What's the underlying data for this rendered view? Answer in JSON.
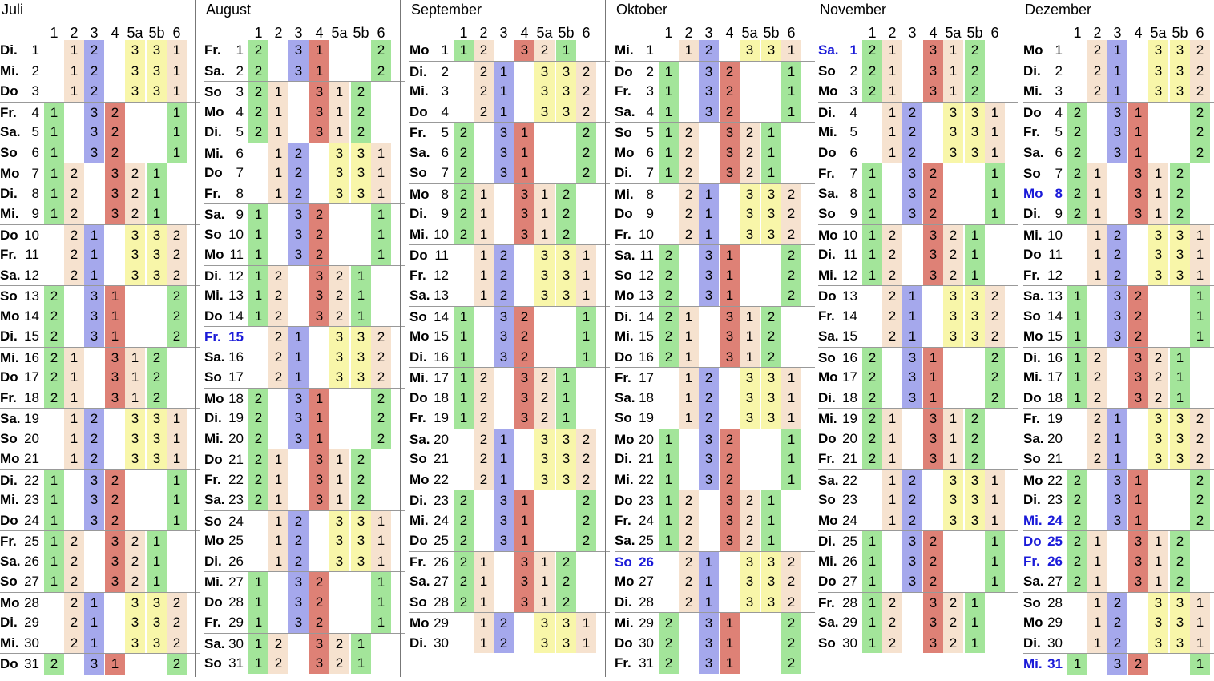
{
  "headers": [
    "1",
    "2",
    "3",
    "4",
    "5a",
    "5b",
    "6"
  ],
  "colors": {
    "c1": "#a3e59a",
    "c2": "#f6e2cf",
    "c3": "#a5a8ec",
    "c4": "#de8176",
    "c5": "#f8f6a9"
  },
  "months": [
    {
      "name": "Juli",
      "days": [
        [
          "Di.",
          "1",
          "P1"
        ],
        [
          "Mi.",
          "2",
          "P1"
        ],
        [
          "Do",
          "3",
          "P1"
        ],
        [
          "Fr.",
          "4",
          "P2"
        ],
        [
          "Sa.",
          "5",
          "P2"
        ],
        [
          "So",
          "6",
          "P2"
        ],
        [
          "Mo",
          "7",
          "P3"
        ],
        [
          "Di.",
          "8",
          "P3"
        ],
        [
          "Mi.",
          "9",
          "P3"
        ],
        [
          "Do",
          "10",
          "P4"
        ],
        [
          "Fr.",
          "11",
          "P4"
        ],
        [
          "Sa.",
          "12",
          "P4"
        ],
        [
          "So",
          "13",
          "P5"
        ],
        [
          "Mo",
          "14",
          "P5"
        ],
        [
          "Di.",
          "15",
          "P5"
        ],
        [
          "Mi.",
          "16",
          "P6"
        ],
        [
          "Do",
          "17",
          "P6"
        ],
        [
          "Fr.",
          "18",
          "P6"
        ],
        [
          "Sa.",
          "19",
          "P1"
        ],
        [
          "So",
          "20",
          "P1"
        ],
        [
          "Mo",
          "21",
          "P1"
        ],
        [
          "Di.",
          "22",
          "P2"
        ],
        [
          "Mi.",
          "23",
          "P2"
        ],
        [
          "Do",
          "24",
          "P2"
        ],
        [
          "Fr.",
          "25",
          "P3"
        ],
        [
          "Sa.",
          "26",
          "P3"
        ],
        [
          "So",
          "27",
          "P3"
        ],
        [
          "Mo",
          "28",
          "P4"
        ],
        [
          "Di.",
          "29",
          "P4"
        ],
        [
          "Mi.",
          "30",
          "P4"
        ],
        [
          "Do",
          "31",
          "P5"
        ]
      ]
    },
    {
      "name": "August",
      "days": [
        [
          "Fr.",
          "1",
          "P5"
        ],
        [
          "Sa.",
          "2",
          "P5"
        ],
        [
          "So",
          "3",
          "P6"
        ],
        [
          "Mo",
          "4",
          "P6"
        ],
        [
          "Di.",
          "5",
          "P6"
        ],
        [
          "Mi.",
          "6",
          "P1"
        ],
        [
          "Do",
          "7",
          "P1"
        ],
        [
          "Fr.",
          "8",
          "P1"
        ],
        [
          "Sa.",
          "9",
          "P2"
        ],
        [
          "So",
          "10",
          "P2"
        ],
        [
          "Mo",
          "11",
          "P2"
        ],
        [
          "Di.",
          "12",
          "P3"
        ],
        [
          "Mi.",
          "13",
          "P3"
        ],
        [
          "Do",
          "14",
          "P3"
        ],
        [
          "Fr.",
          "15",
          "P4",
          true
        ],
        [
          "Sa.",
          "16",
          "P4"
        ],
        [
          "So",
          "17",
          "P4"
        ],
        [
          "Mo",
          "18",
          "P5"
        ],
        [
          "Di.",
          "19",
          "P5"
        ],
        [
          "Mi.",
          "20",
          "P5"
        ],
        [
          "Do",
          "21",
          "P6"
        ],
        [
          "Fr.",
          "22",
          "P6"
        ],
        [
          "Sa.",
          "23",
          "P6"
        ],
        [
          "So",
          "24",
          "P1"
        ],
        [
          "Mo",
          "25",
          "P1"
        ],
        [
          "Di.",
          "26",
          "P1"
        ],
        [
          "Mi.",
          "27",
          "P2"
        ],
        [
          "Do",
          "28",
          "P2"
        ],
        [
          "Fr.",
          "29",
          "P2"
        ],
        [
          "Sa.",
          "30",
          "P3"
        ],
        [
          "So",
          "31",
          "P3"
        ]
      ]
    },
    {
      "name": "September",
      "days": [
        [
          "Mo",
          "1",
          "P3"
        ],
        [
          "Di.",
          "2",
          "P4"
        ],
        [
          "Mi.",
          "3",
          "P4"
        ],
        [
          "Do",
          "4",
          "P4"
        ],
        [
          "Fr.",
          "5",
          "P5"
        ],
        [
          "Sa.",
          "6",
          "P5"
        ],
        [
          "So",
          "7",
          "P5"
        ],
        [
          "Mo",
          "8",
          "P6"
        ],
        [
          "Di.",
          "9",
          "P6"
        ],
        [
          "Mi.",
          "10",
          "P6"
        ],
        [
          "Do",
          "11",
          "P1"
        ],
        [
          "Fr.",
          "12",
          "P1"
        ],
        [
          "Sa.",
          "13",
          "P1"
        ],
        [
          "So",
          "14",
          "P2"
        ],
        [
          "Mo",
          "15",
          "P2"
        ],
        [
          "Di.",
          "16",
          "P2"
        ],
        [
          "Mi.",
          "17",
          "P3"
        ],
        [
          "Do",
          "18",
          "P3"
        ],
        [
          "Fr.",
          "19",
          "P3"
        ],
        [
          "Sa.",
          "20",
          "P4"
        ],
        [
          "So",
          "21",
          "P4"
        ],
        [
          "Mo",
          "22",
          "P4"
        ],
        [
          "Di.",
          "23",
          "P5"
        ],
        [
          "Mi.",
          "24",
          "P5"
        ],
        [
          "Do",
          "25",
          "P5"
        ],
        [
          "Fr.",
          "26",
          "P6"
        ],
        [
          "Sa.",
          "27",
          "P6"
        ],
        [
          "So",
          "28",
          "P6"
        ],
        [
          "Mo",
          "29",
          "P1"
        ],
        [
          "Di.",
          "30",
          "P1"
        ]
      ]
    },
    {
      "name": "Oktober",
      "days": [
        [
          "Mi.",
          "1",
          "P1"
        ],
        [
          "Do",
          "2",
          "P2"
        ],
        [
          "Fr.",
          "3",
          "P2"
        ],
        [
          "Sa.",
          "4",
          "P2"
        ],
        [
          "So",
          "5",
          "P3"
        ],
        [
          "Mo",
          "6",
          "P3"
        ],
        [
          "Di.",
          "7",
          "P3"
        ],
        [
          "Mi.",
          "8",
          "P4"
        ],
        [
          "Do",
          "9",
          "P4"
        ],
        [
          "Fr.",
          "10",
          "P4"
        ],
        [
          "Sa.",
          "11",
          "P5"
        ],
        [
          "So",
          "12",
          "P5"
        ],
        [
          "Mo",
          "13",
          "P5"
        ],
        [
          "Di.",
          "14",
          "P6"
        ],
        [
          "Mi.",
          "15",
          "P6"
        ],
        [
          "Do",
          "16",
          "P6"
        ],
        [
          "Fr.",
          "17",
          "P1"
        ],
        [
          "Sa.",
          "18",
          "P1"
        ],
        [
          "So",
          "19",
          "P1"
        ],
        [
          "Mo",
          "20",
          "P2"
        ],
        [
          "Di.",
          "21",
          "P2"
        ],
        [
          "Mi.",
          "22",
          "P2"
        ],
        [
          "Do",
          "23",
          "P3"
        ],
        [
          "Fr.",
          "24",
          "P3"
        ],
        [
          "Sa.",
          "25",
          "P3"
        ],
        [
          "So",
          "26",
          "P4",
          true
        ],
        [
          "Mo",
          "27",
          "P4"
        ],
        [
          "Di.",
          "28",
          "P4"
        ],
        [
          "Mi.",
          "29",
          "P5"
        ],
        [
          "Do",
          "30",
          "P5"
        ],
        [
          "Fr.",
          "31",
          "P5"
        ]
      ]
    },
    {
      "name": "November",
      "days": [
        [
          "Sa.",
          "1",
          "P6",
          true
        ],
        [
          "So",
          "2",
          "P6"
        ],
        [
          "Mo",
          "3",
          "P6"
        ],
        [
          "Di.",
          "4",
          "P1"
        ],
        [
          "Mi.",
          "5",
          "P1"
        ],
        [
          "Do",
          "6",
          "P1"
        ],
        [
          "Fr.",
          "7",
          "P2"
        ],
        [
          "Sa.",
          "8",
          "P2"
        ],
        [
          "So",
          "9",
          "P2"
        ],
        [
          "Mo",
          "10",
          "P3"
        ],
        [
          "Di.",
          "11",
          "P3"
        ],
        [
          "Mi.",
          "12",
          "P3"
        ],
        [
          "Do",
          "13",
          "P4"
        ],
        [
          "Fr.",
          "14",
          "P4"
        ],
        [
          "Sa.",
          "15",
          "P4"
        ],
        [
          "So",
          "16",
          "P5"
        ],
        [
          "Mo",
          "17",
          "P5"
        ],
        [
          "Di.",
          "18",
          "P5"
        ],
        [
          "Mi.",
          "19",
          "P6"
        ],
        [
          "Do",
          "20",
          "P6"
        ],
        [
          "Fr.",
          "21",
          "P6"
        ],
        [
          "Sa.",
          "22",
          "P1"
        ],
        [
          "So",
          "23",
          "P1"
        ],
        [
          "Mo",
          "24",
          "P1"
        ],
        [
          "Di.",
          "25",
          "P2"
        ],
        [
          "Mi.",
          "26",
          "P2"
        ],
        [
          "Do",
          "27",
          "P2"
        ],
        [
          "Fr.",
          "28",
          "P3"
        ],
        [
          "Sa.",
          "29",
          "P3"
        ],
        [
          "So",
          "30",
          "P3"
        ]
      ]
    },
    {
      "name": "Dezember",
      "days": [
        [
          "Mo",
          "1",
          "P4"
        ],
        [
          "Di.",
          "2",
          "P4"
        ],
        [
          "Mi.",
          "3",
          "P4"
        ],
        [
          "Do",
          "4",
          "P5"
        ],
        [
          "Fr.",
          "5",
          "P5"
        ],
        [
          "Sa.",
          "6",
          "P5"
        ],
        [
          "So",
          "7",
          "P6"
        ],
        [
          "Mo",
          "8",
          "P6",
          true
        ],
        [
          "Di.",
          "9",
          "P6"
        ],
        [
          "Mi.",
          "10",
          "P1"
        ],
        [
          "Do",
          "11",
          "P1"
        ],
        [
          "Fr.",
          "12",
          "P1"
        ],
        [
          "Sa.",
          "13",
          "P2"
        ],
        [
          "So",
          "14",
          "P2"
        ],
        [
          "Mo",
          "15",
          "P2"
        ],
        [
          "Di.",
          "16",
          "P3"
        ],
        [
          "Mi.",
          "17",
          "P3"
        ],
        [
          "Do",
          "18",
          "P3"
        ],
        [
          "Fr.",
          "19",
          "P4"
        ],
        [
          "Sa.",
          "20",
          "P4"
        ],
        [
          "So",
          "21",
          "P4"
        ],
        [
          "Mo",
          "22",
          "P5"
        ],
        [
          "Di.",
          "23",
          "P5"
        ],
        [
          "Mi.",
          "24",
          "P5",
          true
        ],
        [
          "Do",
          "25",
          "P6",
          true
        ],
        [
          "Fr.",
          "26",
          "P6",
          true
        ],
        [
          "Sa.",
          "27",
          "P6"
        ],
        [
          "So",
          "28",
          "P1"
        ],
        [
          "Mo",
          "29",
          "P1"
        ],
        [
          "Di.",
          "30",
          "P1"
        ],
        [
          "Mi.",
          "31",
          "P2",
          true
        ]
      ]
    }
  ],
  "patterns": {
    "P1": [
      [
        "",
        "c0"
      ],
      [
        "1",
        "c2"
      ],
      [
        "2",
        "c3"
      ],
      [
        "",
        "c0"
      ],
      [
        "3",
        "c5"
      ],
      [
        "3",
        "c5"
      ],
      [
        "1",
        "c2"
      ]
    ],
    "P2": [
      [
        "1",
        "c1"
      ],
      [
        "",
        "c0"
      ],
      [
        "3",
        "c3"
      ],
      [
        "2",
        "c4"
      ],
      [
        "",
        "c0"
      ],
      [
        "",
        "c0"
      ],
      [
        "1",
        "c1"
      ]
    ],
    "P3": [
      [
        "1",
        "c1"
      ],
      [
        "2",
        "c2"
      ],
      [
        "",
        "c0"
      ],
      [
        "3",
        "c4"
      ],
      [
        "2",
        "c2"
      ],
      [
        "1",
        "c1"
      ],
      [
        "",
        "c0"
      ]
    ],
    "P4": [
      [
        "",
        "c0"
      ],
      [
        "2",
        "c2"
      ],
      [
        "1",
        "c3"
      ],
      [
        "",
        "c0"
      ],
      [
        "3",
        "c5"
      ],
      [
        "3",
        "c5"
      ],
      [
        "2",
        "c2"
      ]
    ],
    "P5": [
      [
        "2",
        "c1"
      ],
      [
        "",
        "c0"
      ],
      [
        "3",
        "c3"
      ],
      [
        "1",
        "c4"
      ],
      [
        "",
        "c0"
      ],
      [
        "",
        "c0"
      ],
      [
        "2",
        "c1"
      ]
    ],
    "P6": [
      [
        "2",
        "c1"
      ],
      [
        "1",
        "c2"
      ],
      [
        "",
        "c0"
      ],
      [
        "3",
        "c4"
      ],
      [
        "1",
        "c2"
      ],
      [
        "2",
        "c1"
      ],
      [
        "",
        "c0"
      ]
    ]
  }
}
